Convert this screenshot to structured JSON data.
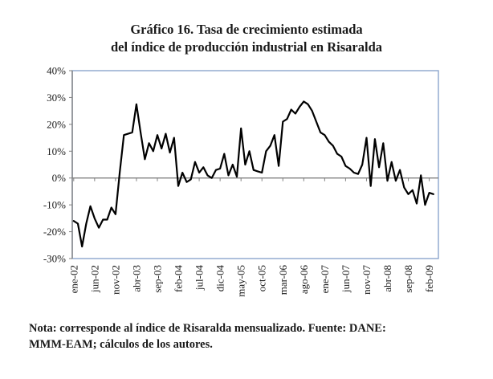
{
  "title": {
    "line1": "Gráfico 16. Tasa de crecimiento estimada",
    "line2": "del índice de producción industrial en Risaralda"
  },
  "note": {
    "line1": "Nota: corresponde al índice de Risaralda mensualizado. Fuente: DANE:",
    "line2": "MMM-EAM; cálculos de los autores."
  },
  "chart_data": {
    "type": "line",
    "title": "Gráfico 16. Tasa de crecimiento estimada del índice de producción industrial en Risaralda",
    "xlabel": "",
    "ylabel": "",
    "ylim": [
      -30,
      40
    ],
    "grid": false,
    "legend": "none",
    "x": [
      "ene-02",
      "feb-02",
      "mar-02",
      "abr-02",
      "may-02",
      "jun-02",
      "jul-02",
      "ago-02",
      "sep-02",
      "oct-02",
      "nov-02",
      "dic-02",
      "ene-03",
      "feb-03",
      "mar-03",
      "abr-03",
      "may-03",
      "jun-03",
      "jul-03",
      "ago-03",
      "sep-03",
      "oct-03",
      "nov-03",
      "dic-03",
      "ene-04",
      "feb-04",
      "mar-04",
      "abr-04",
      "may-04",
      "jun-04",
      "jul-04",
      "ago-04",
      "sep-04",
      "oct-04",
      "nov-04",
      "dic-04",
      "ene-05",
      "feb-05",
      "mar-05",
      "abr-05",
      "may-05",
      "jun-05",
      "jul-05",
      "ago-05",
      "sep-05",
      "oct-05",
      "nov-05",
      "dic-05",
      "ene-06",
      "feb-06",
      "mar-06",
      "abr-06",
      "may-06",
      "jun-06",
      "jul-06",
      "ago-06",
      "sep-06",
      "oct-06",
      "nov-06",
      "dic-06",
      "ene-07",
      "feb-07",
      "mar-07",
      "abr-07",
      "may-07",
      "jun-07",
      "jul-07",
      "ago-07",
      "sep-07",
      "oct-07",
      "nov-07",
      "dic-07",
      "ene-08",
      "feb-08",
      "mar-08",
      "abr-08",
      "may-08",
      "jun-08",
      "jul-08",
      "ago-08",
      "sep-08",
      "oct-08",
      "nov-08",
      "dic-08",
      "ene-09",
      "feb-09",
      "mar-09"
    ],
    "values": [
      -16,
      -17,
      -25.5,
      -17,
      -10.5,
      -15,
      -18.5,
      -15.5,
      -15.5,
      -11,
      -13.5,
      2,
      16,
      16.5,
      17,
      27.5,
      17,
      7,
      13,
      10,
      16,
      11,
      16.5,
      9.5,
      15,
      -3,
      2,
      -1.5,
      -0.5,
      6,
      2,
      4,
      1,
      0,
      3,
      3.5,
      9,
      1,
      5,
      0.5,
      18.5,
      5,
      10,
      3,
      2.5,
      2,
      10,
      12,
      16,
      4.5,
      21,
      22,
      25.5,
      24,
      26.5,
      28.5,
      27.5,
      25,
      21,
      17,
      16,
      13.5,
      12,
      9,
      8,
      4.5,
      3.5,
      2,
      1.5,
      5,
      15,
      -3,
      14.5,
      4,
      13,
      -1,
      6,
      -1,
      3,
      -3.5,
      -6,
      -4.5,
      -9.5,
      1,
      -10,
      -5.5,
      -6
    ],
    "x_tick_labels": [
      "ene-02",
      "jun-02",
      "nov-02",
      "abr-03",
      "sep-03",
      "feb-04",
      "jul-04",
      "dic-04",
      "may-05",
      "oct-05",
      "mar-06",
      "ago-06",
      "ene-07",
      "jun-07",
      "nov-07",
      "abr-08",
      "sep-08",
      "feb-09"
    ],
    "x_tick_step": 5,
    "y_tick_labels": [
      "40%",
      "30%",
      "20%",
      "10%",
      "0%",
      "-10%",
      "-20%",
      "-30%"
    ],
    "y_tick_values": [
      40,
      30,
      20,
      10,
      0,
      -10,
      -20,
      -30
    ],
    "colors": {
      "line": "#000000",
      "axis": "#808080",
      "plot_border": "#8CA5CC",
      "text": "#1a1a1a"
    }
  }
}
